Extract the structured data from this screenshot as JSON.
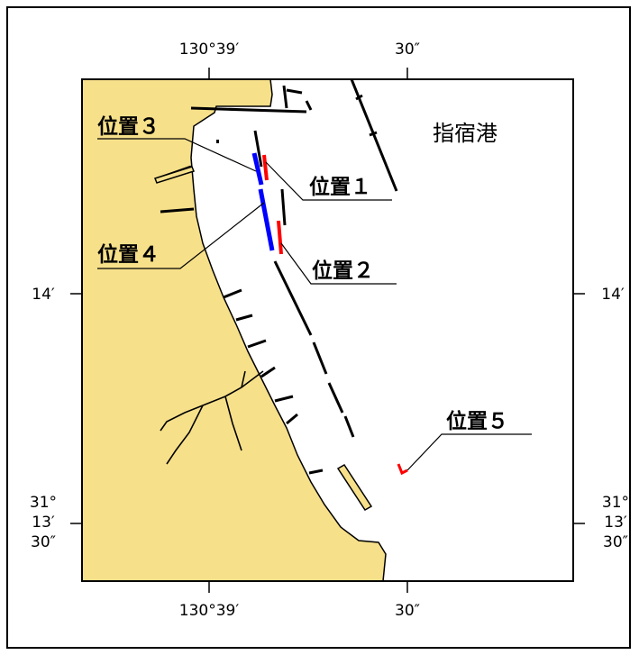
{
  "map": {
    "port_name": "指宿港",
    "top_axis": {
      "left_label": "130°39′",
      "right_label": "30″"
    },
    "bottom_axis": {
      "left_label": "130°39′",
      "right_label": "30″"
    },
    "left_axis": {
      "mid_label": "14′",
      "lower_label_lines": [
        "31°",
        "13′",
        "30″"
      ]
    },
    "right_axis": {
      "mid_label": "14′",
      "lower_label_lines": [
        "31°",
        "13′",
        "30″"
      ]
    },
    "colors": {
      "land": "#f7e08a",
      "water": "#ffffff",
      "position_red": "#ff0000",
      "position_blue": "#0000ff",
      "structures": "#000000"
    },
    "positions": [
      {
        "id": 1,
        "label": "位置１",
        "color": "red"
      },
      {
        "id": 2,
        "label": "位置２",
        "color": "red"
      },
      {
        "id": 3,
        "label": "位置３",
        "color": "blue"
      },
      {
        "id": 4,
        "label": "位置４",
        "color": "blue"
      },
      {
        "id": 5,
        "label": "位置５",
        "color": "red"
      }
    ]
  }
}
